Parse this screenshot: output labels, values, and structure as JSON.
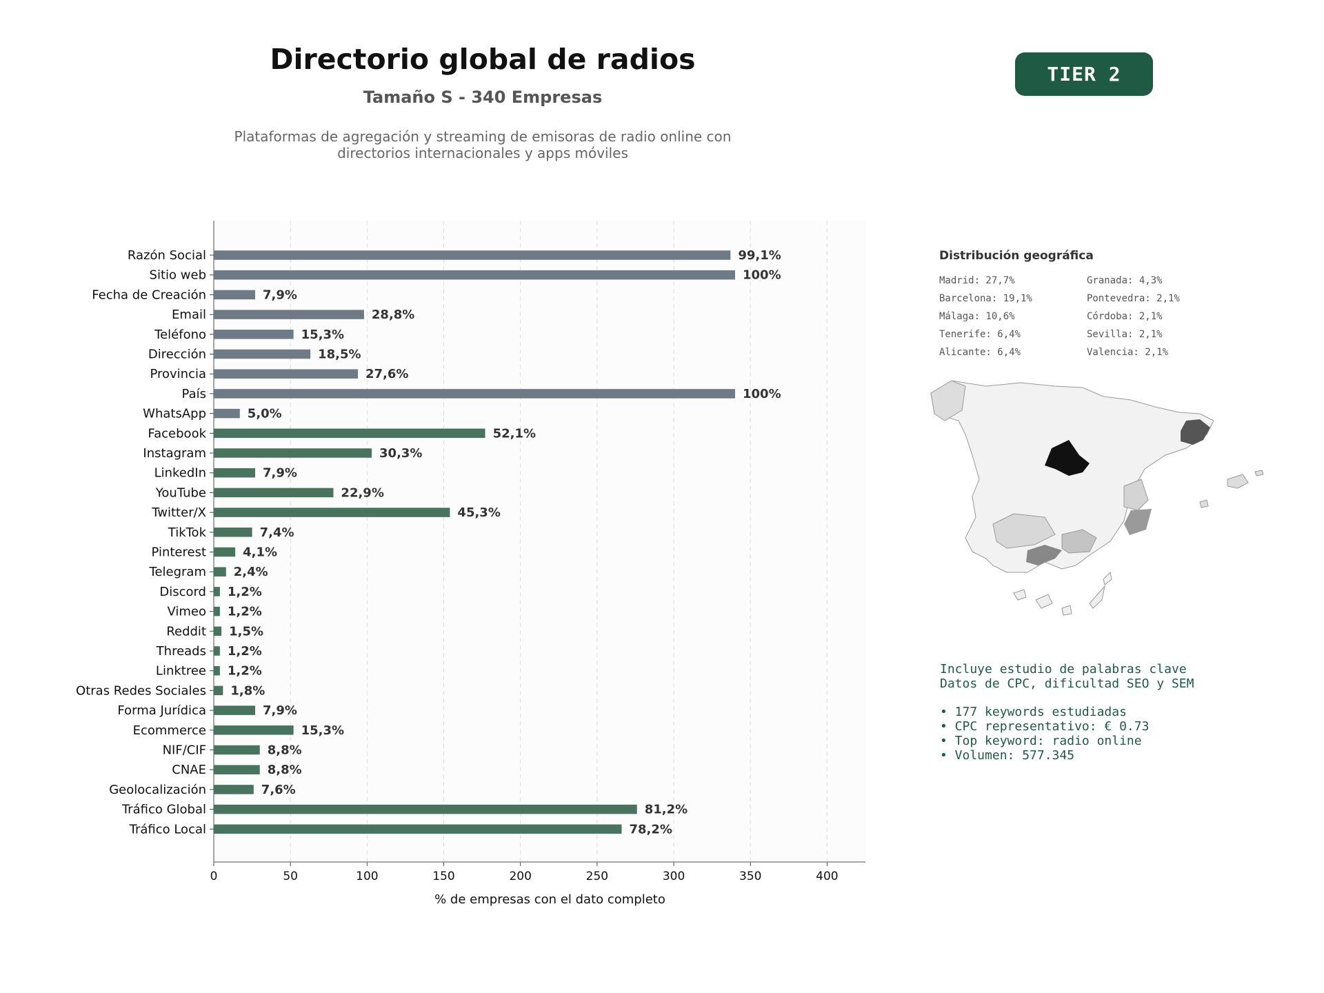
{
  "header": {
    "title": "Directorio global de radios",
    "subtitle": "Tamaño S - 340 Empresas",
    "description": "Plataformas de agregación y streaming de emisoras de radio online con directorios internacionales y apps móviles",
    "badge": "TIER 2"
  },
  "colors": {
    "identity_bars": "#6e7b87",
    "social_bars": "#47735f",
    "brand_dark": "#1f5a44",
    "map_highlight_madrid": "#111111",
    "map_highlight_barcelona": "#555555",
    "map_default": "#f2f2f2"
  },
  "chart_data": {
    "type": "bar",
    "orientation": "horizontal",
    "categories": [
      "Razón Social",
      "Sitio web",
      "Fecha de Creación",
      "Email",
      "Teléfono",
      "Dirección",
      "Provincia",
      "País",
      "WhatsApp",
      "Facebook",
      "Instagram",
      "LinkedIn",
      "YouTube",
      "Twitter/X",
      "TikTok",
      "Pinterest",
      "Telegram",
      "Discord",
      "Vimeo",
      "Reddit",
      "Threads",
      "Linktree",
      "Otras Redes Sociales",
      "Forma Jurídica",
      "Ecommerce",
      "NIF/CIF",
      "CNAE",
      "Geolocalización",
      "Tráfico Global",
      "Tráfico Local"
    ],
    "values": [
      337,
      340,
      27,
      98,
      52,
      63,
      94,
      340,
      17,
      177,
      103,
      27,
      78,
      154,
      25,
      14,
      8,
      4,
      4,
      5,
      4,
      4,
      6,
      27,
      52,
      30,
      30,
      26,
      276,
      266
    ],
    "labels": [
      "99,1%",
      "100%",
      "7,9%",
      "28,8%",
      "15,3%",
      "18,5%",
      "27,6%",
      "100%",
      "5,0%",
      "52,1%",
      "30,3%",
      "7,9%",
      "22,9%",
      "45,3%",
      "7,4%",
      "4,1%",
      "2,4%",
      "1,2%",
      "1,2%",
      "1,5%",
      "1,2%",
      "1,2%",
      "1,8%",
      "7,9%",
      "15,3%",
      "8,8%",
      "8,8%",
      "7,6%",
      "81,2%",
      "78,2%"
    ],
    "group_split_index": 9,
    "xlabel": "% de empresas con el dato completo",
    "xlim": [
      0,
      425
    ],
    "xticks": [
      0,
      50,
      100,
      150,
      200,
      250,
      300,
      350,
      400
    ],
    "grid": "vertical dashed"
  },
  "geo": {
    "title": "Distribución geográfica",
    "entries": [
      "Madrid: 27,7%",
      "Granada: 4,3%",
      "Barcelona: 19,1%",
      "Pontevedra: 2,1%",
      "Málaga: 10,6%",
      "Córdoba: 2,1%",
      "Tenerife: 6,4%",
      "Sevilla: 2,1%",
      "Alicante: 6,4%",
      "Valencia: 2,1%"
    ]
  },
  "keywords": {
    "line1": "Incluye estudio de palabras clave",
    "line2": "Datos de CPC, dificultad SEO y SEM",
    "bullet1": "• 177 keywords estudiadas",
    "bullet2": "• CPC representativo: € 0.73",
    "bullet3": "• Top keyword: radio online",
    "bullet4": "• Volumen: 577.345"
  }
}
